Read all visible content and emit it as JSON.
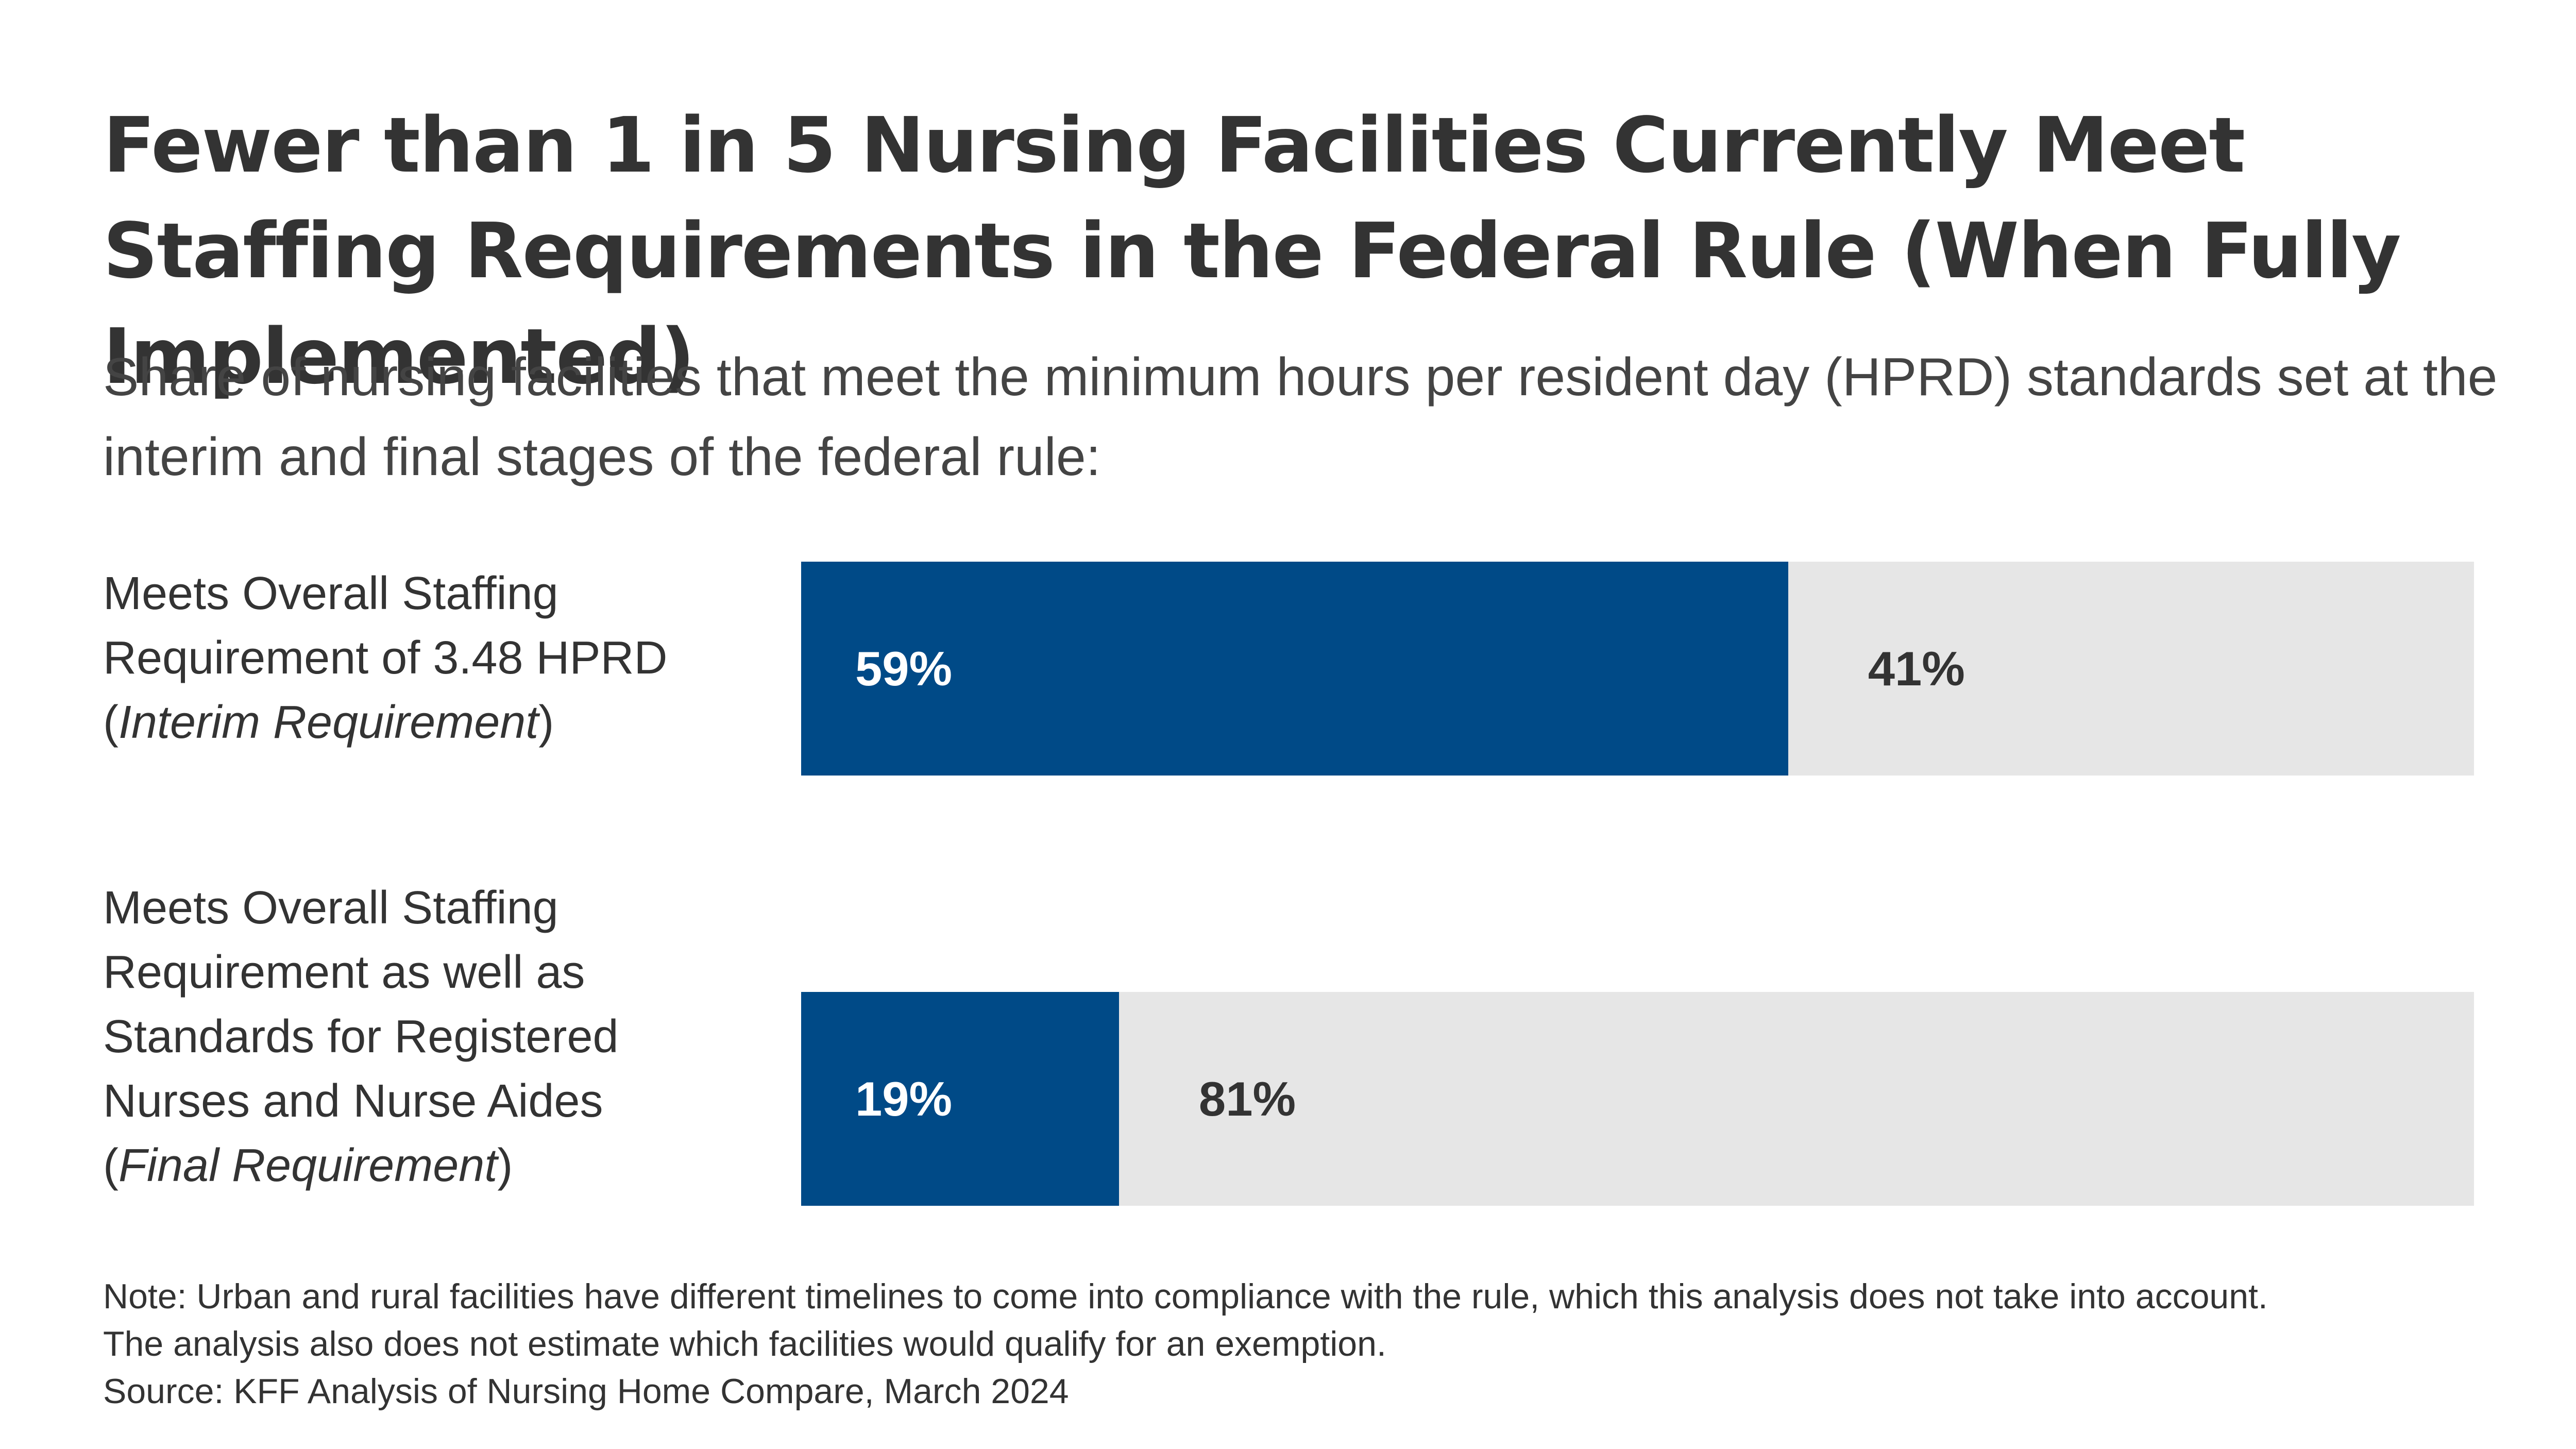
{
  "chart_data": {
    "type": "bar",
    "orientation": "horizontal",
    "stacked": true,
    "title": "Fewer than 1 in 5 Nursing Facilities Currently Meet Staffing Requirements in the Federal Rule (When Fully Implemented)",
    "subtitle": "Share of nursing facilities that meet the minimum hours per resident day (HPRD) standards set at the interim and final stages of the federal rule:",
    "xlim": [
      0,
      100
    ],
    "grid": false,
    "legend": "none",
    "categories": [
      {
        "main": "Meets Overall Staffing Requirement of 3.48 HPRD",
        "open": "(",
        "stage": "Interim Requirement",
        "close": ")"
      },
      {
        "main": "Meets Overall Staffing Requirement as well as Standards for Registered Nurses and Nurse Aides",
        "open": "(",
        "stage": "Final Requirement",
        "close": ")"
      }
    ],
    "series": [
      {
        "values": [
          59,
          19
        ],
        "labels": [
          "59%",
          "19%"
        ],
        "color": "#004a87"
      },
      {
        "values": [
          41,
          81
        ],
        "labels": [
          "41%",
          "81%"
        ],
        "color": "#e6e6e6"
      }
    ]
  },
  "footnotes": {
    "note": "Note: Urban and rural facilities have different timelines to come into compliance with the rule, which this analysis does not take into account. The analysis also does not estimate which facilities would qualify for an exemption.",
    "source": "Source: KFF Analysis of Nursing Home Compare, March 2024"
  }
}
